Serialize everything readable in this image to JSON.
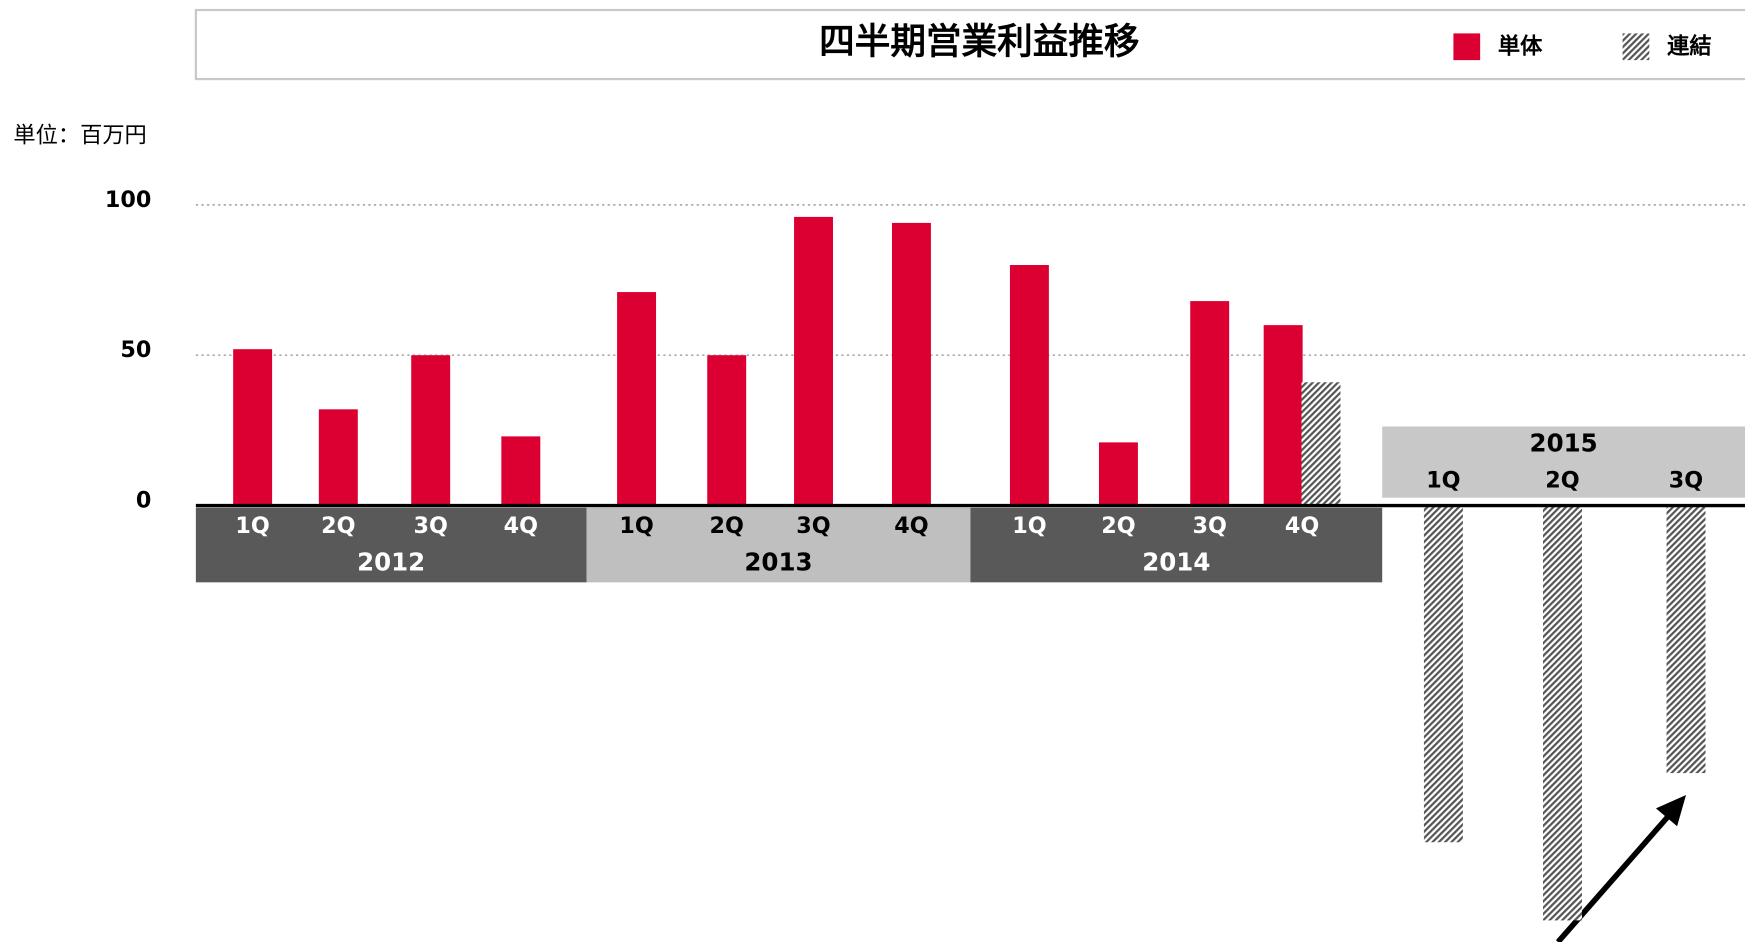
{
  "chart_data": {
    "type": "bar",
    "title": "四半期営業利益推移",
    "unit_label": "単位：百万円",
    "groups": [
      {
        "name": "2012",
        "quarters": [
          "1Q",
          "2Q",
          "3Q",
          "4Q"
        ]
      },
      {
        "name": "2013",
        "quarters": [
          "1Q",
          "2Q",
          "3Q",
          "4Q"
        ]
      },
      {
        "name": "2014",
        "quarters": [
          "1Q",
          "2Q",
          "3Q",
          "4Q"
        ]
      },
      {
        "name": "2015",
        "quarters": [
          "1Q",
          "2Q",
          "3Q"
        ]
      }
    ],
    "series": [
      {
        "name": "単体",
        "color": "#dc0032",
        "values": [
          52,
          32,
          50,
          23,
          71,
          50,
          96,
          94,
          80,
          21,
          68,
          60,
          null,
          null,
          null
        ]
      },
      {
        "name": "連結",
        "color": "#555555",
        "pattern": "hatch",
        "values": [
          null,
          null,
          null,
          null,
          null,
          null,
          null,
          null,
          null,
          null,
          null,
          41,
          -112,
          -138,
          -89
        ]
      }
    ],
    "ylim": [
      -145,
      112
    ],
    "yticks": [
      0,
      50,
      100
    ],
    "grid": true
  }
}
